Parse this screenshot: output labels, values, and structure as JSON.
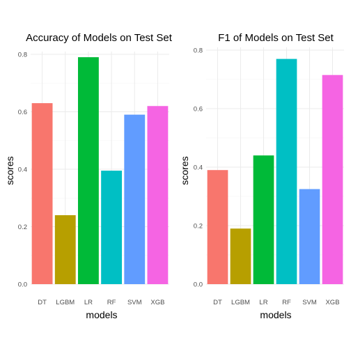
{
  "chart_data": [
    {
      "type": "bar",
      "title": "Accuracy of Models on Test Set",
      "xlabel": "models",
      "ylabel": "scores",
      "categories": [
        "DT",
        "LGBM",
        "LR",
        "RF",
        "SVM",
        "XGB"
      ],
      "values": [
        0.63,
        0.24,
        0.79,
        0.395,
        0.59,
        0.62
      ],
      "colors": [
        "#F8766D",
        "#B79F00",
        "#00BA38",
        "#00BFC4",
        "#619CFF",
        "#F564E3"
      ],
      "yticks": [
        "0.0",
        "0.2",
        "0.4",
        "0.6",
        "0.8"
      ],
      "ylim": [
        0,
        0.82
      ],
      "grid": true
    },
    {
      "type": "bar",
      "title": "F1 of Models on Test Set",
      "xlabel": "models",
      "ylabel": "scores",
      "categories": [
        "DT",
        "LGBM",
        "LR",
        "RF",
        "SVM",
        "XGB"
      ],
      "values": [
        0.39,
        0.19,
        0.44,
        0.77,
        0.325,
        0.715
      ],
      "colors": [
        "#F8766D",
        "#B79F00",
        "#00BA38",
        "#00BFC4",
        "#619CFF",
        "#F564E3"
      ],
      "yticks": [
        "0.0",
        "0.2",
        "0.4",
        "0.6",
        "0.8"
      ],
      "ylim": [
        0,
        0.8
      ],
      "grid": true
    }
  ]
}
